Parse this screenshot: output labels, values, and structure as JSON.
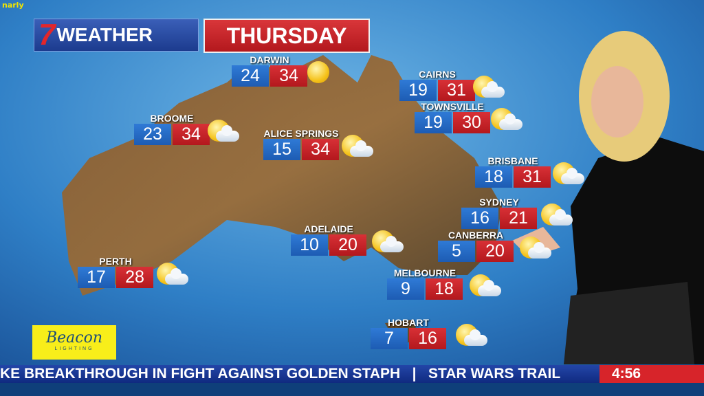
{
  "watermark": "narly",
  "header": {
    "logo": "7",
    "title": "WEATHER",
    "day": "THURSDAY"
  },
  "cities": [
    {
      "name": "DARWIN",
      "min": "24",
      "max": "34",
      "icon": "sun"
    },
    {
      "name": "BROOME",
      "min": "23",
      "max": "34",
      "icon": "sun-cloud"
    },
    {
      "name": "ALICE SPRINGS",
      "min": "15",
      "max": "34",
      "icon": "sun-cloud"
    },
    {
      "name": "CAIRNS",
      "min": "19",
      "max": "31",
      "icon": "sun-cloud"
    },
    {
      "name": "TOWNSVILLE",
      "min": "19",
      "max": "30",
      "icon": "sun-cloud"
    },
    {
      "name": "BRISBANE",
      "min": "18",
      "max": "31",
      "icon": "sun-cloud"
    },
    {
      "name": "SYDNEY",
      "min": "16",
      "max": "21",
      "icon": "sun-cloud"
    },
    {
      "name": "CANBERRA",
      "min": "5",
      "max": "20",
      "icon": "sun-cloud"
    },
    {
      "name": "ADELAIDE",
      "min": "10",
      "max": "20",
      "icon": "sun-cloud"
    },
    {
      "name": "PERTH",
      "min": "17",
      "max": "28",
      "icon": "sun-cloud"
    },
    {
      "name": "MELBOURNE",
      "min": "9",
      "max": "18",
      "icon": "sun-cloud"
    },
    {
      "name": "HOBART",
      "min": "7",
      "max": "16",
      "icon": "sun-cloud"
    }
  ],
  "sponsor": {
    "name": "Beacon",
    "sub": "LIGHTING"
  },
  "ticker": {
    "text": "KE BREAKTHROUGH IN FIGHT AGAINST GOLDEN STAPH   |   STAR WARS TRAIL",
    "time": "4:56"
  },
  "colors": {
    "min": "#1d5cb3",
    "max": "#c41e24",
    "ticker": "#1a3a96",
    "time": "#d7242a"
  }
}
